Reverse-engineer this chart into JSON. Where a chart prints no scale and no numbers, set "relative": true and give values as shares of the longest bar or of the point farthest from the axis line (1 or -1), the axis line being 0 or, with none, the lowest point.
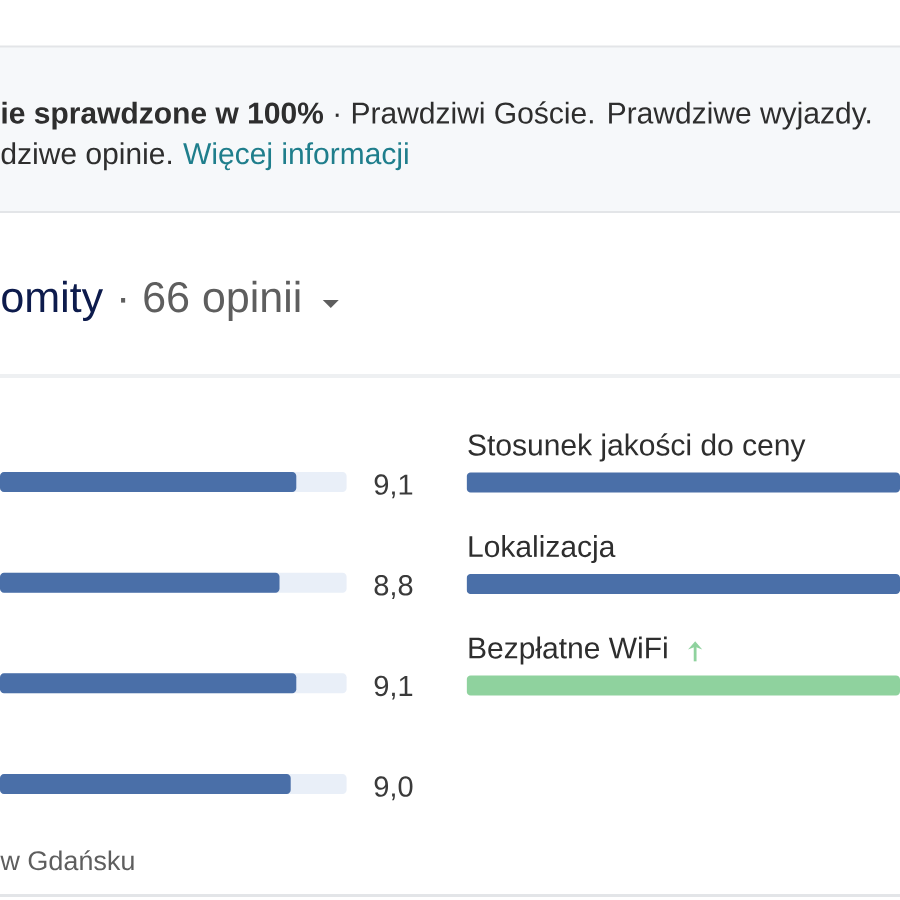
{
  "chart_data": [
    {
      "type": "other",
      "annotations": [
        "**ie sprawdzone w 100%** · Prawdziwi Goście. Prawdziwe wyjazdy.",
        "dziwe opinie.",
        "Więcej informacji",
        "omity",
        "· 66 opinii"
      ]
    },
    {
      "type": "bar",
      "orientation": "horizontal",
      "categories": [
        null,
        null,
        null,
        null
      ],
      "values": [
        9.1,
        8.8,
        9.1,
        9.0
      ],
      "value_labels": [
        "9,1",
        "8,8",
        "9,1",
        "9,0"
      ],
      "color": "#4a6fa8",
      "xlim": [
        3.8,
        10
      ],
      "tick_labels": false,
      "annotations": [
        "w Gdańsku"
      ]
    },
    {
      "type": "bar",
      "orientation": "horizontal",
      "categories": [
        "Stosunek jakości do ceny",
        "Lokalizacja",
        "Bezpłatne WiFi"
      ],
      "values": [
        1,
        1,
        1
      ],
      "relative": true,
      "colors": [
        "#4a6fa8",
        "#4a6fa8",
        "#8fd29e"
      ],
      "tick_labels": "y"
    }
  ]
}
